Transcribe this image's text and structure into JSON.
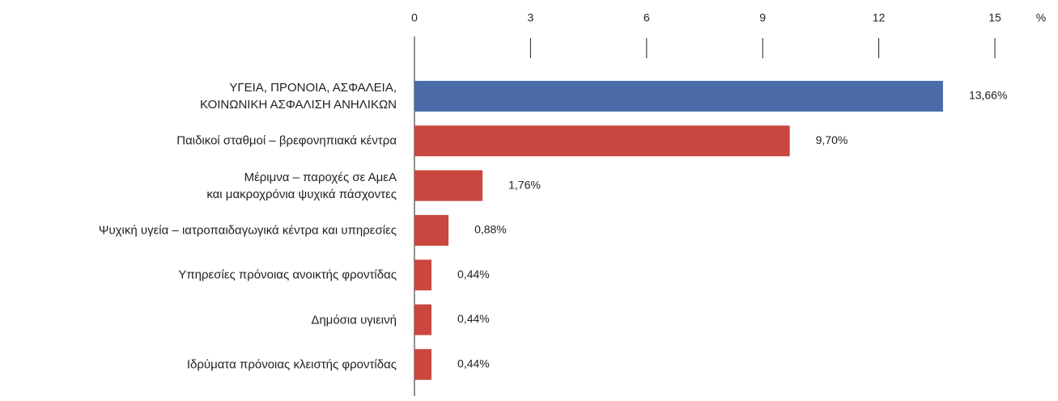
{
  "chart_data": {
    "type": "hbar",
    "categories": [
      "ΥΓΕΙΑ, ΠΡΟΝΟΙΑ, ΑΣΦΑΛΕΙΑ,\nΚΟΙΝΩΝΙΚΗ ΑΣΦΑΛΙΣΗ ΑΝΗΛΙΚΩΝ",
      "Παιδικοί σταθμοί – βρεφονηπιακά κέντρα",
      "Μέριμνα – παροχές σε ΑμεΑ \nκαι μακροχρόνια ψυχικά πάσχοντες",
      "Ψυχική υγεία – ιατροπαιδαγωγικά κέντρα και υπηρεσίες",
      "Υπηρεσίες πρόνοιας ανοικτής φροντίδας",
      "Δημόσια υγιεινή",
      "Ιδρύματα πρόνοιας κλειστής φροντίδας"
    ],
    "values": [
      13.66,
      9.7,
      1.76,
      0.88,
      0.44,
      0.44,
      0.44
    ],
    "value_labels": [
      "13,66%",
      "9,70%",
      "1,76%",
      "0,88%",
      "0,44%",
      "0,44%",
      "0,44%"
    ],
    "colors": [
      "#4a6ba8",
      "#c9473e",
      "#c9473e",
      "#c9473e",
      "#c9473e",
      "#c9473e",
      "#c9473e"
    ],
    "xlim": [
      0,
      15
    ],
    "xticks": [
      0,
      3,
      6,
      9,
      12,
      15
    ],
    "x_unit": "%"
  }
}
